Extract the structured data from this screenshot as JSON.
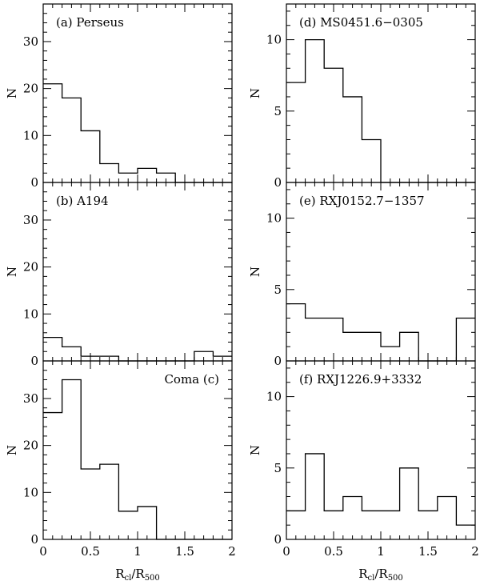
{
  "figure": {
    "xlabel_left": {
      "main": "R",
      "sub1": "cl",
      "slash": "/R",
      "sub2": "500"
    },
    "xlabel_right": {
      "main": "R",
      "sub1": "cl",
      "slash": "/R",
      "sub2": "500"
    },
    "ylabel": "N"
  },
  "chart_data": [
    {
      "id": "a",
      "type": "histogram",
      "label": "(a) Perseus",
      "label_align": "left",
      "column": "left",
      "row": 0,
      "bin_edges": [
        0,
        0.2,
        0.4,
        0.6,
        0.8,
        1.0,
        1.2,
        1.4,
        1.6,
        1.8,
        2.0
      ],
      "counts": [
        21,
        18,
        11,
        4,
        2,
        3,
        2,
        0,
        0,
        0
      ],
      "xlim": [
        0,
        2
      ],
      "ylim": [
        0,
        38
      ],
      "yticks_major": [
        0,
        10,
        20,
        30
      ],
      "yticks_minor_step": 2,
      "ytick_labels": [
        "0",
        "10",
        "20",
        "30"
      ],
      "xticks_major": [
        0,
        0.5,
        1,
        1.5,
        2
      ],
      "xticks_minor_step": 0.1,
      "xtick_labels": []
    },
    {
      "id": "b",
      "type": "histogram",
      "label": "(b) A194",
      "label_align": "left",
      "column": "left",
      "row": 1,
      "bin_edges": [
        0,
        0.2,
        0.4,
        0.6,
        0.8,
        1.0,
        1.2,
        1.4,
        1.6,
        1.8,
        2.0
      ],
      "counts": [
        5,
        3,
        1,
        1,
        0,
        0,
        0,
        0,
        2,
        1
      ],
      "xlim": [
        0,
        2
      ],
      "ylim": [
        0,
        38
      ],
      "yticks_major": [
        0,
        10,
        20,
        30
      ],
      "yticks_minor_step": 2,
      "ytick_labels": [
        "0",
        "10",
        "20",
        "30"
      ],
      "xticks_major": [
        0,
        0.5,
        1,
        1.5,
        2
      ],
      "xticks_minor_step": 0.1,
      "xtick_labels": []
    },
    {
      "id": "c",
      "type": "histogram",
      "label": "Coma (c)",
      "label_align": "right",
      "column": "left",
      "row": 2,
      "bin_edges": [
        0,
        0.2,
        0.4,
        0.6,
        0.8,
        1.0,
        1.2,
        1.4,
        1.6,
        1.8,
        2.0
      ],
      "counts": [
        27,
        34,
        15,
        16,
        6,
        7,
        0,
        0,
        0,
        0
      ],
      "xlim": [
        0,
        2
      ],
      "ylim": [
        0,
        38
      ],
      "yticks_major": [
        0,
        10,
        20,
        30
      ],
      "yticks_minor_step": 2,
      "ytick_labels": [
        "0",
        "10",
        "20",
        "30"
      ],
      "xticks_major": [
        0,
        0.5,
        1,
        1.5,
        2
      ],
      "xticks_minor_step": 0.1,
      "xtick_labels": [
        "0",
        "0.5",
        "1",
        "1.5",
        "2"
      ]
    },
    {
      "id": "d",
      "type": "histogram",
      "label": "(d) MS0451.6−0305",
      "label_align": "left",
      "column": "right",
      "row": 0,
      "bin_edges": [
        0,
        0.2,
        0.4,
        0.6,
        0.8,
        1.0,
        1.2,
        1.4,
        1.6,
        1.8,
        2.0
      ],
      "counts": [
        7,
        10,
        8,
        6,
        3,
        0,
        0,
        0,
        0,
        0
      ],
      "xlim": [
        0,
        2
      ],
      "ylim": [
        0,
        12.5
      ],
      "yticks_major": [
        0,
        5,
        10
      ],
      "yticks_minor_step": 1,
      "ytick_labels": [
        "0",
        "5",
        "10"
      ],
      "xticks_major": [
        0,
        0.5,
        1,
        1.5,
        2
      ],
      "xticks_minor_step": 0.1,
      "xtick_labels": []
    },
    {
      "id": "e",
      "type": "histogram",
      "label": "(e) RXJ0152.7−1357",
      "label_align": "left",
      "column": "right",
      "row": 1,
      "bin_edges": [
        0,
        0.2,
        0.4,
        0.6,
        0.8,
        1.0,
        1.2,
        1.4,
        1.6,
        1.8,
        2.0
      ],
      "counts": [
        4,
        3,
        3,
        2,
        2,
        1,
        2,
        0,
        0,
        3
      ],
      "xlim": [
        0,
        2
      ],
      "ylim": [
        0,
        12.5
      ],
      "yticks_major": [
        0,
        5,
        10
      ],
      "yticks_minor_step": 1,
      "ytick_labels": [
        "0",
        "5",
        "10"
      ],
      "xticks_major": [
        0,
        0.5,
        1,
        1.5,
        2
      ],
      "xticks_minor_step": 0.1,
      "xtick_labels": []
    },
    {
      "id": "f",
      "type": "histogram",
      "label": "(f) RXJ1226.9+3332",
      "label_align": "left",
      "column": "right",
      "row": 2,
      "bin_edges": [
        0,
        0.2,
        0.4,
        0.6,
        0.8,
        1.0,
        1.2,
        1.4,
        1.6,
        1.8,
        2.0
      ],
      "counts": [
        2,
        6,
        2,
        3,
        2,
        2,
        5,
        2,
        3,
        1
      ],
      "xlim": [
        0,
        2
      ],
      "ylim": [
        0,
        12.5
      ],
      "yticks_major": [
        0,
        5,
        10
      ],
      "yticks_minor_step": 1,
      "ytick_labels": [
        "0",
        "5",
        "10"
      ],
      "xticks_major": [
        0,
        0.5,
        1,
        1.5,
        2
      ],
      "xticks_minor_step": 0.1,
      "xtick_labels": [
        "0",
        "0.5",
        "1",
        "1.5",
        "2"
      ]
    }
  ]
}
